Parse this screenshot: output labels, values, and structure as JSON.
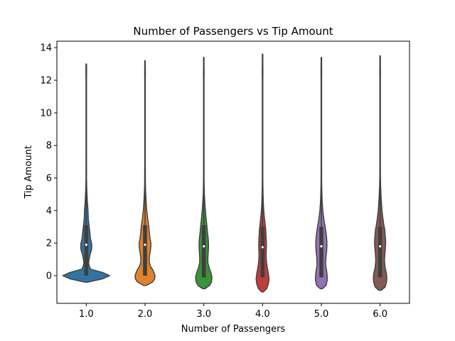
{
  "chart_data": {
    "type": "violin",
    "title": "Number of Passengers vs Tip Amount",
    "xlabel": "Number of Passengers",
    "ylabel": "Tip Amount",
    "ylim": [
      -1.7,
      14.4
    ],
    "yticks": [
      0,
      2,
      4,
      6,
      8,
      10,
      12,
      14
    ],
    "grid": false,
    "categories": [
      "1.0",
      "2.0",
      "3.0",
      "4.0",
      "5.0",
      "6.0"
    ],
    "colors": [
      "#3274a1",
      "#e1812c",
      "#3a923a",
      "#c03d3e",
      "#9372b2",
      "#845b53"
    ],
    "violins": [
      {
        "category": "1.0",
        "min": -0.4,
        "max": 13.0,
        "q1": 0.0,
        "median": 1.9,
        "q3": 3.1,
        "whisker_low": 0.0,
        "whisker_high": 7.3,
        "density": [
          [
            -0.4,
            0.05
          ],
          [
            -0.2,
            0.55
          ],
          [
            0.0,
            0.8
          ],
          [
            0.2,
            0.55
          ],
          [
            0.4,
            0.15
          ],
          [
            0.6,
            0.1
          ],
          [
            0.8,
            0.08
          ],
          [
            1.0,
            0.1
          ],
          [
            1.3,
            0.13
          ],
          [
            1.6,
            0.18
          ],
          [
            1.8,
            0.19
          ],
          [
            2.0,
            0.18
          ],
          [
            2.3,
            0.14
          ],
          [
            2.7,
            0.12
          ],
          [
            3.0,
            0.1
          ],
          [
            3.5,
            0.07
          ],
          [
            4.0,
            0.06
          ],
          [
            4.5,
            0.04
          ],
          [
            5.0,
            0.025
          ],
          [
            5.5,
            0.015
          ],
          [
            6.0,
            0.01
          ],
          [
            7.0,
            0.007
          ],
          [
            8.0,
            0.005
          ],
          [
            9.0,
            0.004
          ],
          [
            10.0,
            0.005
          ],
          [
            11.0,
            0.004
          ],
          [
            12.0,
            0.006
          ],
          [
            12.5,
            0.012
          ],
          [
            12.8,
            0.012
          ],
          [
            13.0,
            0.0
          ]
        ]
      },
      {
        "category": "2.0",
        "min": -0.6,
        "max": 13.2,
        "q1": 0.0,
        "median": 1.9,
        "q3": 3.1,
        "whisker_low": 0.0,
        "whisker_high": 7.0,
        "density": [
          [
            -0.6,
            0.05
          ],
          [
            -0.4,
            0.25
          ],
          [
            -0.2,
            0.33
          ],
          [
            0.0,
            0.34
          ],
          [
            0.3,
            0.28
          ],
          [
            0.6,
            0.18
          ],
          [
            0.9,
            0.14
          ],
          [
            1.2,
            0.15
          ],
          [
            1.5,
            0.18
          ],
          [
            1.8,
            0.2
          ],
          [
            2.0,
            0.2
          ],
          [
            2.3,
            0.17
          ],
          [
            2.6,
            0.15
          ],
          [
            3.0,
            0.13
          ],
          [
            3.5,
            0.09
          ],
          [
            4.0,
            0.06
          ],
          [
            4.5,
            0.04
          ],
          [
            5.0,
            0.025
          ],
          [
            5.5,
            0.015
          ],
          [
            6.0,
            0.012
          ],
          [
            7.0,
            0.008
          ],
          [
            8.0,
            0.006
          ],
          [
            10.0,
            0.006
          ],
          [
            11.5,
            0.005
          ],
          [
            12.0,
            0.008
          ],
          [
            12.5,
            0.012
          ],
          [
            13.0,
            0.006
          ],
          [
            13.2,
            0.0
          ]
        ]
      },
      {
        "category": "3.0",
        "min": -0.8,
        "max": 13.4,
        "q1": -0.1,
        "median": 1.8,
        "q3": 3.1,
        "whisker_low": -0.1,
        "whisker_high": 7.0,
        "density": [
          [
            -0.8,
            0.04
          ],
          [
            -0.6,
            0.2
          ],
          [
            -0.4,
            0.26
          ],
          [
            -0.1,
            0.28
          ],
          [
            0.2,
            0.24
          ],
          [
            0.5,
            0.18
          ],
          [
            0.8,
            0.14
          ],
          [
            1.1,
            0.14
          ],
          [
            1.4,
            0.15
          ],
          [
            1.7,
            0.16
          ],
          [
            2.0,
            0.16
          ],
          [
            2.3,
            0.15
          ],
          [
            2.6,
            0.13
          ],
          [
            3.0,
            0.11
          ],
          [
            3.5,
            0.08
          ],
          [
            4.0,
            0.055
          ],
          [
            4.5,
            0.035
          ],
          [
            5.0,
            0.02
          ],
          [
            5.5,
            0.013
          ],
          [
            6.0,
            0.01
          ],
          [
            7.0,
            0.007
          ],
          [
            8.0,
            0.006
          ],
          [
            10.0,
            0.006
          ],
          [
            12.0,
            0.008
          ],
          [
            12.4,
            0.012
          ],
          [
            12.8,
            0.008
          ],
          [
            13.4,
            0.0
          ]
        ]
      },
      {
        "category": "4.0",
        "min": -1.0,
        "max": 13.6,
        "q1": -0.1,
        "median": 1.75,
        "q3": 3.0,
        "whisker_low": -0.1,
        "whisker_high": 7.2,
        "density": [
          [
            -1.0,
            0.03
          ],
          [
            -0.8,
            0.14
          ],
          [
            -0.5,
            0.2
          ],
          [
            -0.2,
            0.22
          ],
          [
            0.1,
            0.2
          ],
          [
            0.5,
            0.16
          ],
          [
            0.9,
            0.13
          ],
          [
            1.3,
            0.12
          ],
          [
            1.7,
            0.13
          ],
          [
            2.0,
            0.13
          ],
          [
            2.4,
            0.12
          ],
          [
            2.8,
            0.11
          ],
          [
            3.2,
            0.085
          ],
          [
            3.6,
            0.06
          ],
          [
            4.0,
            0.04
          ],
          [
            4.5,
            0.025
          ],
          [
            5.0,
            0.017
          ],
          [
            5.5,
            0.012
          ],
          [
            6.0,
            0.009
          ],
          [
            7.0,
            0.007
          ],
          [
            8.0,
            0.006
          ],
          [
            10.0,
            0.006
          ],
          [
            12.0,
            0.008
          ],
          [
            12.5,
            0.012
          ],
          [
            13.0,
            0.008
          ],
          [
            13.6,
            0.0
          ]
        ]
      },
      {
        "category": "5.0",
        "min": -0.8,
        "max": 13.4,
        "q1": -0.1,
        "median": 1.8,
        "q3": 3.0,
        "whisker_low": -0.1,
        "whisker_high": 7.0,
        "density": [
          [
            -0.8,
            0.04
          ],
          [
            -0.6,
            0.16
          ],
          [
            -0.3,
            0.2
          ],
          [
            0.0,
            0.2
          ],
          [
            0.3,
            0.18
          ],
          [
            0.6,
            0.15
          ],
          [
            0.9,
            0.15
          ],
          [
            1.2,
            0.16
          ],
          [
            1.5,
            0.18
          ],
          [
            1.8,
            0.19
          ],
          [
            2.1,
            0.19
          ],
          [
            2.5,
            0.17
          ],
          [
            2.9,
            0.14
          ],
          [
            3.3,
            0.1
          ],
          [
            3.7,
            0.07
          ],
          [
            4.0,
            0.05
          ],
          [
            4.5,
            0.03
          ],
          [
            5.0,
            0.02
          ],
          [
            5.5,
            0.013
          ],
          [
            6.0,
            0.01
          ],
          [
            7.0,
            0.007
          ],
          [
            8.0,
            0.006
          ],
          [
            10.0,
            0.006
          ],
          [
            12.0,
            0.008
          ],
          [
            12.5,
            0.012
          ],
          [
            13.0,
            0.007
          ],
          [
            13.4,
            0.0
          ]
        ]
      },
      {
        "category": "6.0",
        "min": -0.9,
        "max": 13.5,
        "q1": -0.1,
        "median": 1.8,
        "q3": 3.0,
        "whisker_low": -0.1,
        "whisker_high": 7.0,
        "density": [
          [
            -0.9,
            0.04
          ],
          [
            -0.7,
            0.17
          ],
          [
            -0.4,
            0.22
          ],
          [
            -0.1,
            0.23
          ],
          [
            0.2,
            0.21
          ],
          [
            0.5,
            0.17
          ],
          [
            0.9,
            0.15
          ],
          [
            1.3,
            0.16
          ],
          [
            1.7,
            0.18
          ],
          [
            2.0,
            0.19
          ],
          [
            2.4,
            0.18
          ],
          [
            2.8,
            0.16
          ],
          [
            3.2,
            0.12
          ],
          [
            3.6,
            0.09
          ],
          [
            4.0,
            0.065
          ],
          [
            4.5,
            0.045
          ],
          [
            5.0,
            0.03
          ],
          [
            5.5,
            0.018
          ],
          [
            6.0,
            0.012
          ],
          [
            7.0,
            0.008
          ],
          [
            8.0,
            0.006
          ],
          [
            10.0,
            0.006
          ],
          [
            12.0,
            0.008
          ],
          [
            12.5,
            0.012
          ],
          [
            13.0,
            0.008
          ],
          [
            13.5,
            0.0
          ]
        ]
      }
    ]
  }
}
